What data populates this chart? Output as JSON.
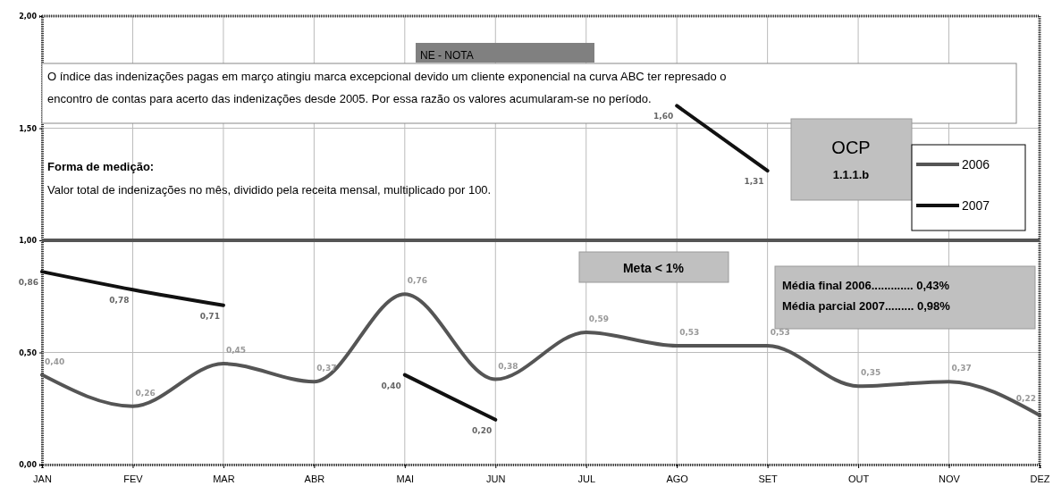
{
  "chart_data": {
    "type": "line",
    "categories": [
      "JAN",
      "FEV",
      "MAR",
      "ABR",
      "MAI",
      "JUN",
      "JUL",
      "AGO",
      "SET",
      "OUT",
      "NOV",
      "DEZ"
    ],
    "series": [
      {
        "name": "2006",
        "color": "#555555",
        "values": [
          0.4,
          0.26,
          0.45,
          0.37,
          0.76,
          0.38,
          0.59,
          0.53,
          0.53,
          0.35,
          0.37,
          0.22
        ],
        "value_labels": [
          "0,40",
          "0,26",
          "0,45",
          "0,37",
          "0,76",
          "0,38",
          "0,59",
          "0,53",
          "0,53",
          "0,35",
          "0,37",
          "0,22"
        ]
      },
      {
        "name": "2007",
        "color": "#111111",
        "values": [
          0.86,
          0.78,
          0.71,
          null,
          0.4,
          0.2,
          null,
          1.6,
          1.31,
          null,
          null,
          null
        ],
        "value_labels": [
          "0,86",
          "0,78",
          "0,71",
          null,
          "0,40",
          "0,20",
          null,
          "1,60",
          "1,31",
          null,
          null,
          null
        ]
      }
    ],
    "ylim": [
      0,
      2
    ],
    "yticks": [
      {
        "value": 0,
        "label": "0,00"
      },
      {
        "value": 0.5,
        "label": "0,50"
      },
      {
        "value": 1,
        "label": "1,00"
      },
      {
        "value": 1.5,
        "label": "1,50"
      },
      {
        "value": 2,
        "label": "2,00"
      }
    ],
    "grid": true,
    "legend": "top right",
    "marker": "none",
    "line_style": "solid",
    "ref_lines": [
      {
        "axis": "y",
        "value": 1,
        "label": "Meta < 1%",
        "color": "#555555"
      }
    ],
    "annotations": [
      "NE - NOTA",
      "O índice das indenizações pagas em março atingiu marca excepcional devido um cliente exponencial na curva ABC ter represado o",
      "encontro de contas para acerto das indenizações desde 2005. Por essa razão os valores acumularam-se no período.",
      "Forma de medição:",
      "Valor total de indenizações no mês, dividido pela receita mensal, multiplicado por 100.",
      "OCP",
      "1.1.1.b",
      "Média final 2006.............  0,43%",
      "Média parcial 2007.........  0,98%"
    ]
  }
}
